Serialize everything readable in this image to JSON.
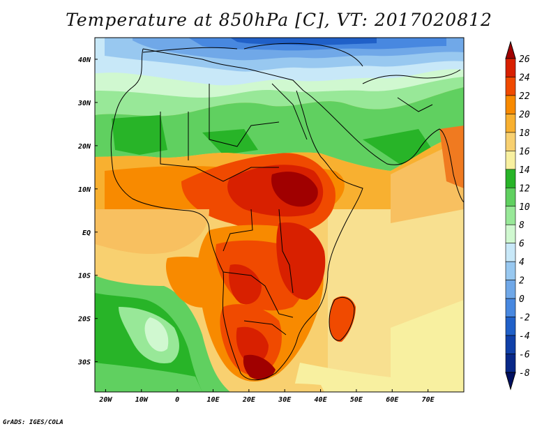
{
  "title": "Temperature at 850hPa [C], VT: 2017020812",
  "credit": "GrADS: IGES/COLA",
  "map": {
    "variable": "Temperature at 850hPa",
    "units": "C",
    "valid_time": "2017020812",
    "lon_range": [
      -23,
      80
    ],
    "lat_range": [
      -37,
      45
    ],
    "lat_ticks": [
      {
        "value": 40,
        "label": "40N"
      },
      {
        "value": 30,
        "label": "30N"
      },
      {
        "value": 20,
        "label": "20N"
      },
      {
        "value": 10,
        "label": "10N"
      },
      {
        "value": 0,
        "label": "EQ"
      },
      {
        "value": -10,
        "label": "10S"
      },
      {
        "value": -20,
        "label": "20S"
      },
      {
        "value": -30,
        "label": "30S"
      }
    ],
    "lon_ticks": [
      {
        "value": -20,
        "label": "20W"
      },
      {
        "value": -10,
        "label": "10W"
      },
      {
        "value": 0,
        "label": "0"
      },
      {
        "value": 10,
        "label": "10E"
      },
      {
        "value": 20,
        "label": "20E"
      },
      {
        "value": 30,
        "label": "30E"
      },
      {
        "value": 40,
        "label": "40E"
      },
      {
        "value": 50,
        "label": "50E"
      },
      {
        "value": 60,
        "label": "60E"
      },
      {
        "value": 70,
        "label": "70E"
      }
    ]
  },
  "colorbar": {
    "levels": [
      "26",
      "24",
      "22",
      "20",
      "18",
      "16",
      "14",
      "12",
      "10",
      "8",
      "6",
      "4",
      "2",
      "0",
      "-2",
      "-4",
      "-6",
      "-8"
    ],
    "colors": [
      "#a00000",
      "#d82000",
      "#f04a00",
      "#f88a00",
      "#f8b030",
      "#f8d070",
      "#f8f0a0",
      "#28b428",
      "#60d060",
      "#98e898",
      "#d0f8d0",
      "#c8e8f8",
      "#98c8f0",
      "#70a8e8",
      "#4888e0",
      "#2060c8",
      "#1040a8",
      "#082888",
      "#001060"
    ]
  }
}
